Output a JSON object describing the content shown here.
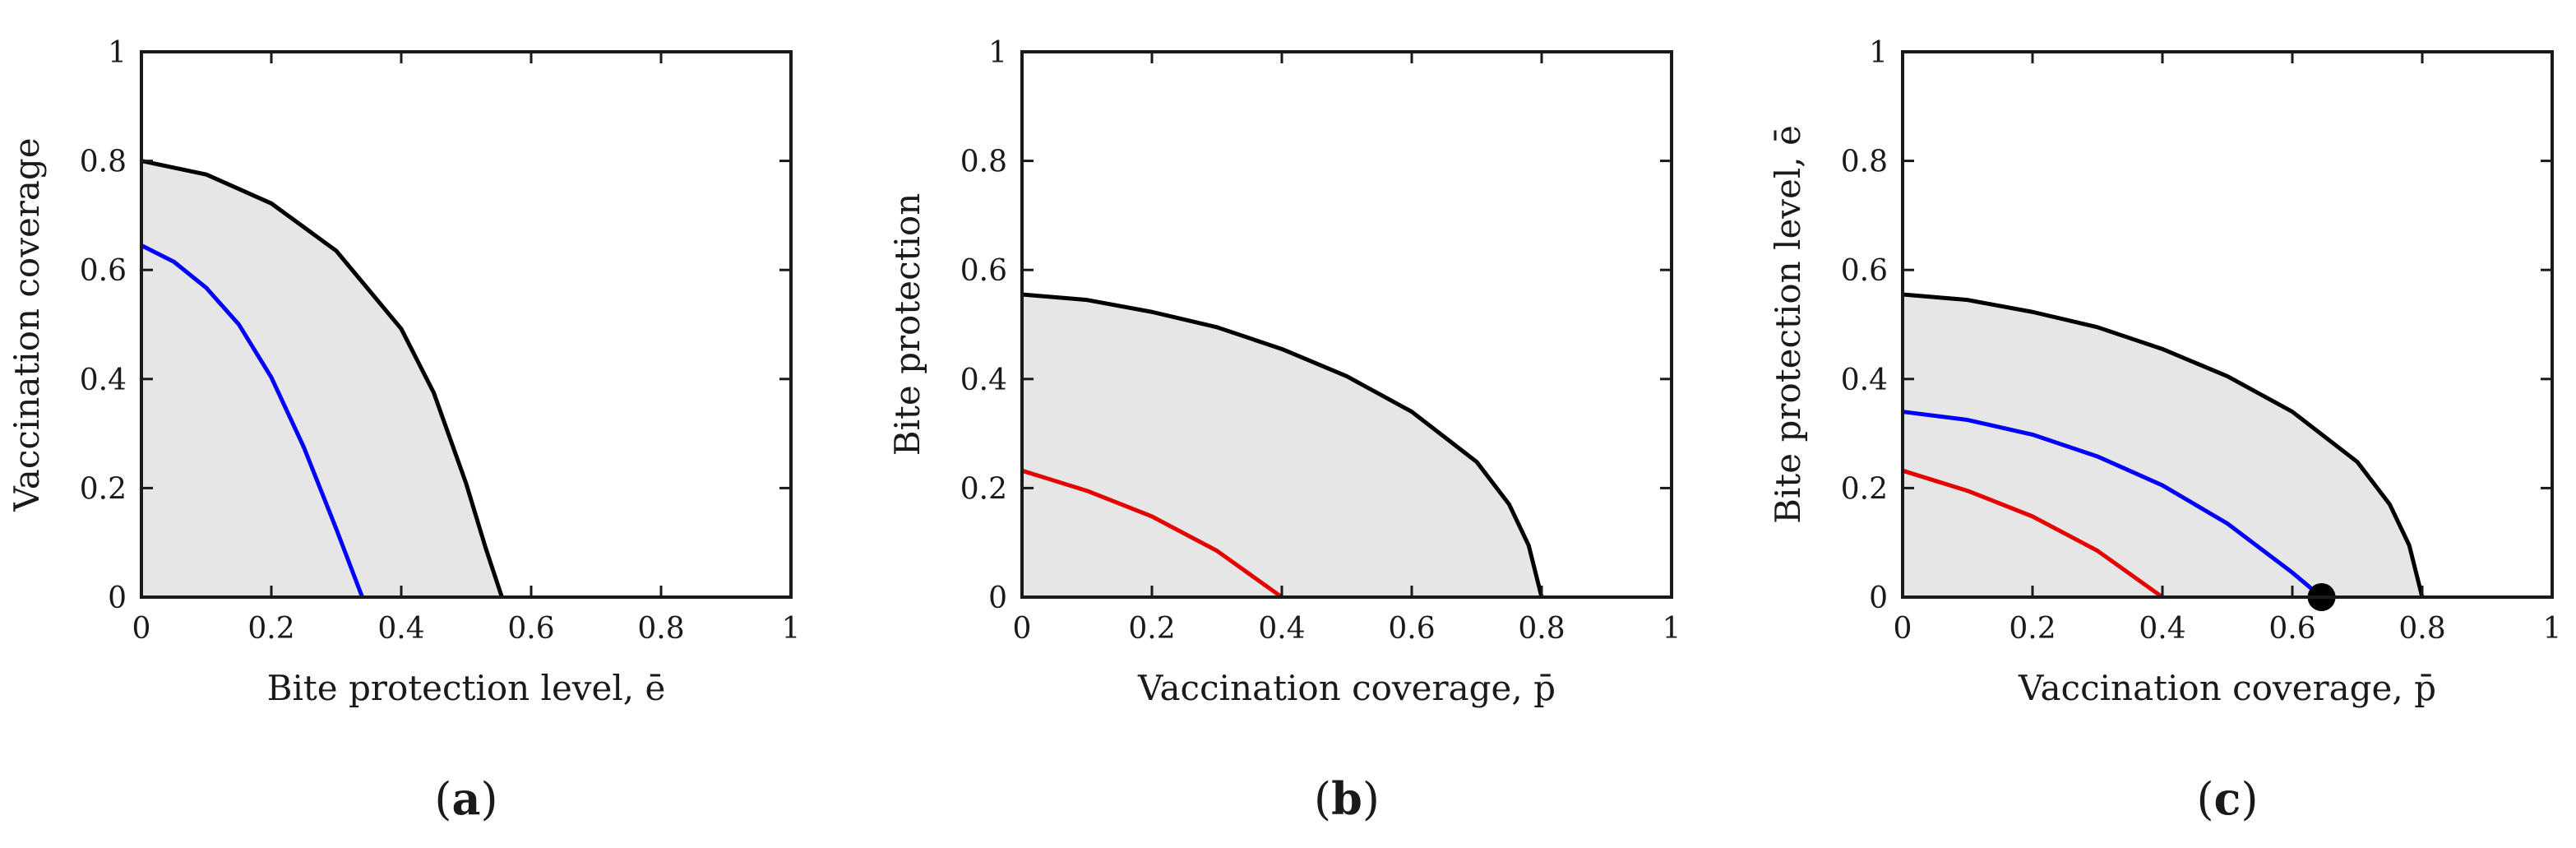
{
  "chart_data": [
    {
      "type": "line",
      "panel_label": "(a)",
      "xlabel": "Bite protection level, ē",
      "ylabel": "Vaccination coverage",
      "xlim": [
        0,
        1
      ],
      "ylim": [
        0,
        1
      ],
      "xticks": [
        "0",
        "0.2",
        "0.4",
        "0.6",
        "0.8",
        "1"
      ],
      "yticks": [
        "0",
        "0.2",
        "0.4",
        "0.6",
        "0.8",
        "1"
      ],
      "xtick_values": [
        0,
        0.2,
        0.4,
        0.6,
        0.8,
        1
      ],
      "ytick_values": [
        0,
        0.2,
        0.4,
        0.6,
        0.8,
        1
      ],
      "shade_color": "#e6e6e6",
      "shaded_under_series": 0,
      "series": [
        {
          "color": "#000000",
          "x": [
            0,
            0.1,
            0.2,
            0.3,
            0.4,
            0.45,
            0.5,
            0.53,
            0.555
          ],
          "y": [
            0.8,
            0.775,
            0.722,
            0.635,
            0.492,
            0.375,
            0.208,
            0.09,
            0
          ]
        },
        {
          "color": "#0000ff",
          "x": [
            0,
            0.05,
            0.1,
            0.15,
            0.2,
            0.25,
            0.3,
            0.34
          ],
          "y": [
            0.645,
            0.615,
            0.567,
            0.5,
            0.403,
            0.275,
            0.125,
            0
          ]
        }
      ],
      "markers": []
    },
    {
      "type": "line",
      "panel_label": "(b)",
      "xlabel": "Vaccination coverage, p̄",
      "ylabel": "Bite protection",
      "xlim": [
        0,
        1
      ],
      "ylim": [
        0,
        1
      ],
      "xticks": [
        "0",
        "0.2",
        "0.4",
        "0.6",
        "0.8",
        "1"
      ],
      "yticks": [
        "0",
        "0.2",
        "0.4",
        "0.6",
        "0.8",
        "1"
      ],
      "xtick_values": [
        0,
        0.2,
        0.4,
        0.6,
        0.8,
        1
      ],
      "ytick_values": [
        0,
        0.2,
        0.4,
        0.6,
        0.8,
        1
      ],
      "shade_color": "#e6e6e6",
      "shaded_under_series": 0,
      "series": [
        {
          "color": "#000000",
          "x": [
            0,
            0.1,
            0.2,
            0.3,
            0.4,
            0.5,
            0.6,
            0.7,
            0.75,
            0.78,
            0.8
          ],
          "y": [
            0.555,
            0.545,
            0.523,
            0.495,
            0.455,
            0.405,
            0.34,
            0.248,
            0.17,
            0.095,
            0
          ]
        },
        {
          "color": "#e60000",
          "x": [
            0,
            0.1,
            0.2,
            0.3,
            0.4
          ],
          "y": [
            0.232,
            0.195,
            0.148,
            0.085,
            0
          ]
        }
      ],
      "markers": []
    },
    {
      "type": "line",
      "panel_label": "(c)",
      "xlabel": "Vaccination coverage, p̄",
      "ylabel": "Bite protection level, ē",
      "xlim": [
        0,
        1
      ],
      "ylim": [
        0,
        1
      ],
      "xticks": [
        "0",
        "0.2",
        "0.4",
        "0.6",
        "0.8",
        "1"
      ],
      "yticks": [
        "0",
        "0.2",
        "0.4",
        "0.6",
        "0.8",
        "1"
      ],
      "xtick_values": [
        0,
        0.2,
        0.4,
        0.6,
        0.8,
        1
      ],
      "ytick_values": [
        0,
        0.2,
        0.4,
        0.6,
        0.8,
        1
      ],
      "shade_color": "#e6e6e6",
      "shaded_under_series": 0,
      "series": [
        {
          "color": "#000000",
          "x": [
            0,
            0.1,
            0.2,
            0.3,
            0.4,
            0.5,
            0.6,
            0.7,
            0.75,
            0.78,
            0.8
          ],
          "y": [
            0.555,
            0.545,
            0.523,
            0.495,
            0.455,
            0.405,
            0.34,
            0.248,
            0.17,
            0.095,
            0
          ]
        },
        {
          "color": "#0000ff",
          "x": [
            0,
            0.1,
            0.2,
            0.3,
            0.4,
            0.5,
            0.6,
            0.645
          ],
          "y": [
            0.34,
            0.325,
            0.298,
            0.258,
            0.205,
            0.135,
            0.045,
            0
          ]
        },
        {
          "color": "#e60000",
          "x": [
            0,
            0.1,
            0.2,
            0.3,
            0.4
          ],
          "y": [
            0.232,
            0.195,
            0.148,
            0.085,
            0
          ]
        }
      ],
      "markers": [
        {
          "x": 0.645,
          "y": 0,
          "color": "#000000"
        }
      ]
    }
  ]
}
